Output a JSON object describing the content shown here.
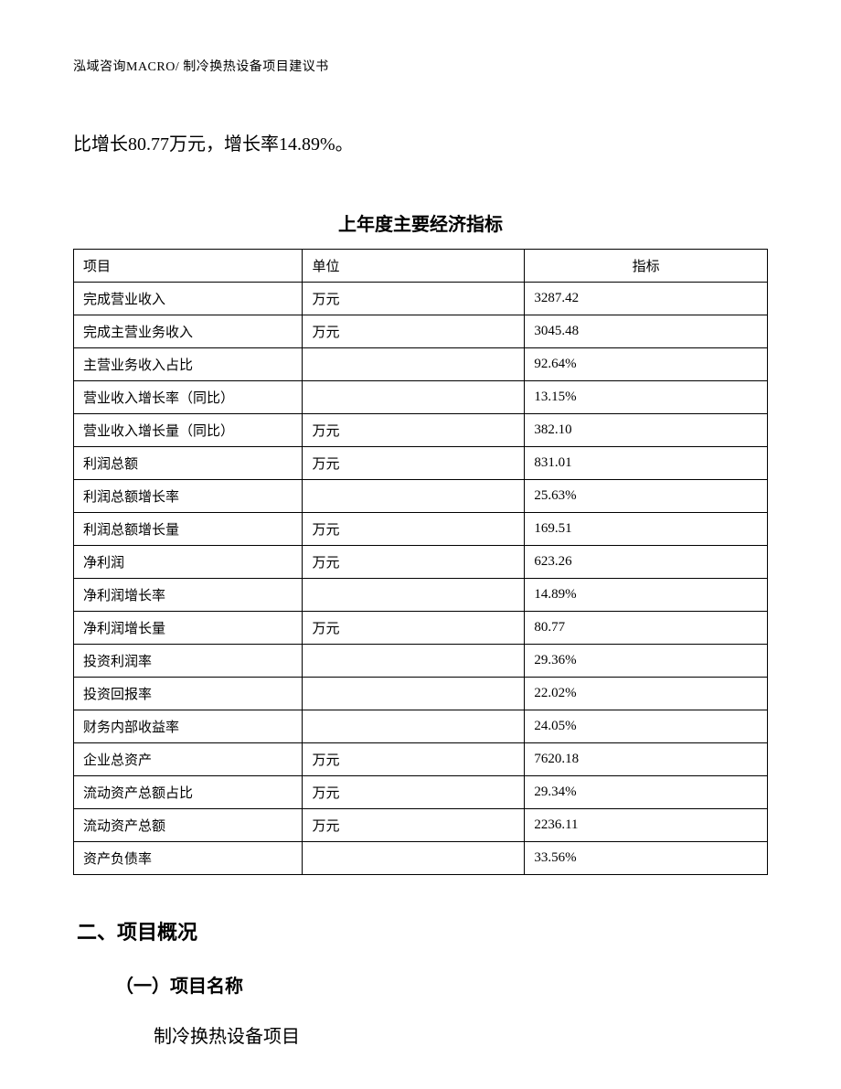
{
  "header": {
    "text": "泓域咨询MACRO/ 制冷换热设备项目建议书"
  },
  "intro": {
    "text": "比增长80.77万元，增长率14.89%。"
  },
  "table": {
    "title": "上年度主要经济指标",
    "columns": [
      "项目",
      "单位",
      "指标"
    ],
    "column_widths": [
      "33%",
      "32%",
      "35%"
    ],
    "header_align": [
      "left",
      "left",
      "center"
    ],
    "rows": [
      {
        "item": "完成营业收入",
        "unit": "万元",
        "value": "3287.42"
      },
      {
        "item": "完成主营业务收入",
        "unit": "万元",
        "value": "3045.48"
      },
      {
        "item": "主营业务收入占比",
        "unit": "",
        "value": "92.64%"
      },
      {
        "item": "营业收入增长率（同比）",
        "unit": "",
        "value": "13.15%"
      },
      {
        "item": "营业收入增长量（同比）",
        "unit": "万元",
        "value": "382.10"
      },
      {
        "item": "利润总额",
        "unit": "万元",
        "value": "831.01"
      },
      {
        "item": "利润总额增长率",
        "unit": "",
        "value": "25.63%"
      },
      {
        "item": "利润总额增长量",
        "unit": "万元",
        "value": "169.51"
      },
      {
        "item": "净利润",
        "unit": "万元",
        "value": "623.26"
      },
      {
        "item": "净利润增长率",
        "unit": "",
        "value": "14.89%"
      },
      {
        "item": "净利润增长量",
        "unit": "万元",
        "value": "80.77"
      },
      {
        "item": "投资利润率",
        "unit": "",
        "value": "29.36%"
      },
      {
        "item": "投资回报率",
        "unit": "",
        "value": "22.02%"
      },
      {
        "item": "财务内部收益率",
        "unit": "",
        "value": "24.05%"
      },
      {
        "item": "企业总资产",
        "unit": "万元",
        "value": "7620.18"
      },
      {
        "item": "流动资产总额占比",
        "unit": "万元",
        "value": "29.34%"
      },
      {
        "item": "流动资产总额",
        "unit": "万元",
        "value": "2236.11"
      },
      {
        "item": "资产负债率",
        "unit": "",
        "value": "33.56%"
      }
    ]
  },
  "section": {
    "heading": "二、项目概况",
    "sub_heading": "（一）项目名称",
    "body": "制冷换热设备项目"
  },
  "styles": {
    "background_color": "#ffffff",
    "text_color": "#000000",
    "border_color": "#000000",
    "header_fontsize": 14,
    "body_fontsize": 20,
    "table_fontsize": 15,
    "title_fontsize": 20,
    "section_heading_fontsize": 22
  }
}
